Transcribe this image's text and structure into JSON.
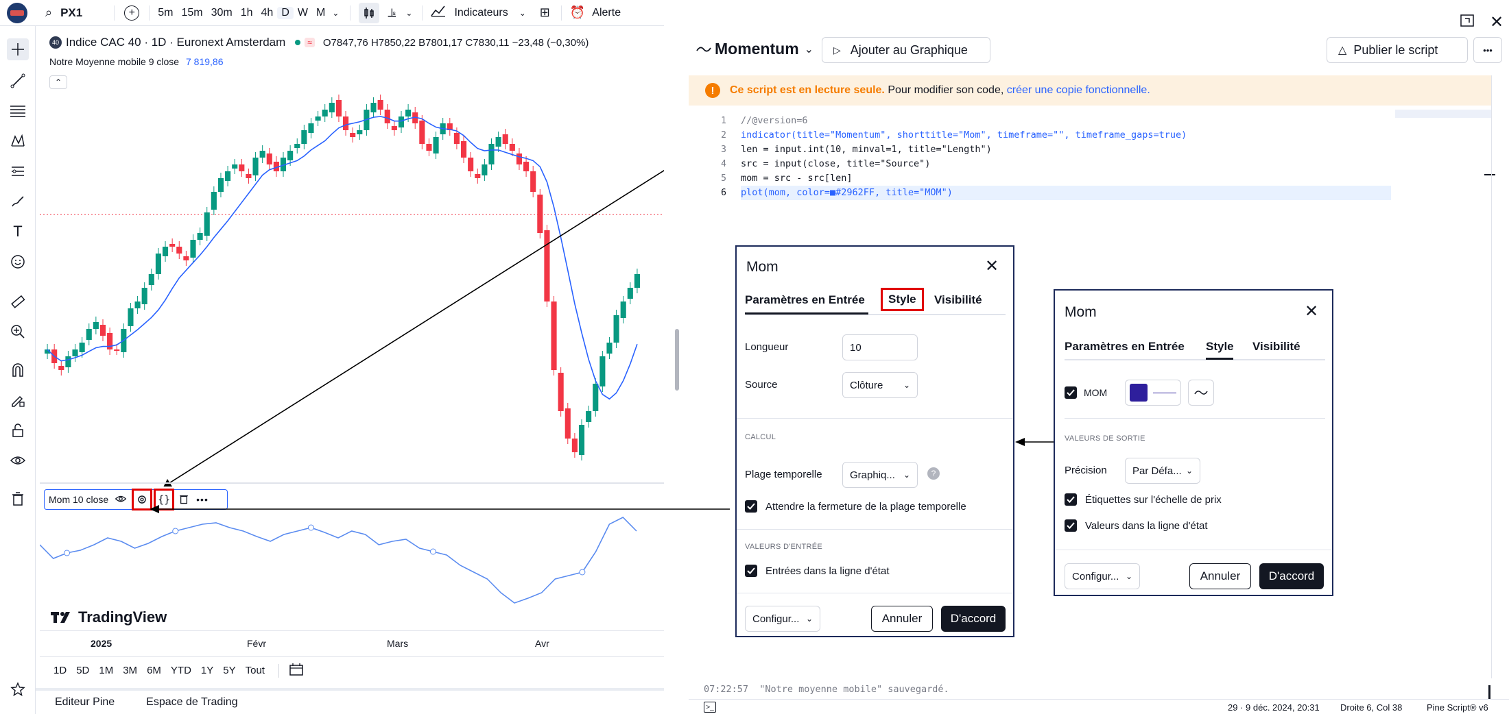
{
  "topbar": {
    "symbol": "PX1",
    "intervals": [
      "5m",
      "15m",
      "30m",
      "1h",
      "4h",
      "D",
      "W",
      "M"
    ],
    "indicators_label": "Indicateurs",
    "alert_label": "Alerte"
  },
  "chart": {
    "title": "Indice CAC 40 · 1D · Euronext Amsterdam",
    "badge": "40",
    "ohlc": "O7847,76 H7850,22 B7801,17 C7830,11 −23,48 (−0,30%)",
    "ma_label": "Notre Moyenne mobile 9 close",
    "ma_value": "7 819,86",
    "mom_label": "Mom 10 close",
    "logo_text": "TradingView",
    "time_labels": [
      "2025",
      "Févr",
      "Mars",
      "Avr"
    ],
    "ranges": [
      "1D",
      "5D",
      "1M",
      "3M",
      "6M",
      "YTD",
      "1Y",
      "5Y",
      "Tout"
    ],
    "bottom_tabs": [
      "Editeur Pine",
      "Espace de Trading"
    ],
    "colors": {
      "up": "#089981",
      "down": "#f23645",
      "ma": "#2962ff",
      "mom": "#5b8cf0"
    }
  },
  "pine": {
    "script_name": "Momentum",
    "add_label": "Ajouter au Graphique",
    "publish_label": "Publier le script",
    "warning_bold": "Ce script est en lecture seule.",
    "warning_text": " Pour modifier son code, ",
    "warning_link": "créer une copie fonctionnelle.",
    "code_lines": [
      "//@version=6",
      "indicator(title=\"Momentum\", shorttitle=\"Mom\", timeframe=\"\", timeframe_gaps=true)",
      "len = input.int(10, minval=1, title=\"Length\")",
      "src = input(close, title=\"Source\")",
      "mom = src - src[len]",
      "plot(mom, color=■#2962FF, title=\"MOM\")"
    ],
    "line_numbers": [
      "1",
      "2",
      "3",
      "4",
      "5",
      "6"
    ],
    "console": "07:22:57  \"Notre moyenne mobile\" sauvegardé.",
    "status": {
      "version": "29 · 9 déc. 2024, 20:31",
      "position": "Droite 6, Col 38",
      "lang": "Pine Script® v6"
    }
  },
  "dialog1": {
    "title": "Mom",
    "tabs": [
      "Paramètres en Entrée",
      "Style",
      "Visibilité"
    ],
    "length_label": "Longueur",
    "length_value": "10",
    "source_label": "Source",
    "source_value": "Clôture",
    "calc_section": "CALCUL",
    "timeframe_label": "Plage temporelle",
    "timeframe_value": "Graphiq...",
    "wait_close_label": "Attendre la fermeture de la plage temporelle",
    "inputs_section": "VALEURS D'ENTRÉE",
    "inputs_status_label": "Entrées dans la ligne d'état",
    "config_label": "Configur...",
    "cancel_label": "Annuler",
    "ok_label": "D'accord"
  },
  "dialog2": {
    "title": "Mom",
    "tabs": [
      "Paramètres en Entrée",
      "Style",
      "Visibilité"
    ],
    "mom_label": "MOM",
    "plot_color": "#2e1f9c",
    "output_section": "VALEURS DE SORTIE",
    "precision_label": "Précision",
    "precision_value": "Par Défa...",
    "price_scale_label": "Étiquettes sur l'échelle de prix",
    "status_line_label": "Valeurs dans la ligne d'état",
    "config_label": "Configur...",
    "cancel_label": "Annuler",
    "ok_label": "D'accord"
  }
}
